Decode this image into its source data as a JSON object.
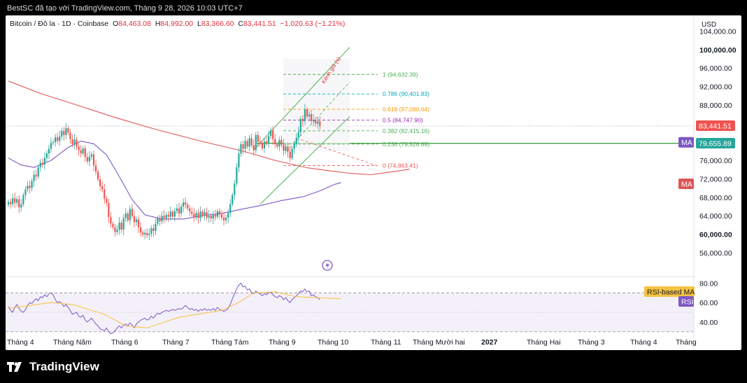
{
  "header": {
    "text": "BestSC đã tạo với TradingView.com, Tháng 9 28, 2026 10:03 UTC+7"
  },
  "symbol": {
    "name": "Bitcoin / Đô la · 1D · Coinbase",
    "o_label": "O",
    "o": "84,463.08",
    "h_label": "H",
    "h": "84,992.00",
    "l_label": "L",
    "l": "83,366.60",
    "c_label": "C",
    "c": "83,441.51",
    "change": "−1,020.63 (−1.21%)"
  },
  "footer": {
    "logo_text": "TradingView"
  },
  "colors": {
    "up": "#26a69a",
    "down": "#ef5350",
    "ma_long": "#e05656",
    "ma_short": "#7e57c2",
    "rsi": "#7e57c2",
    "rsi_ma": "#f5c242",
    "channel": "#4caf50"
  },
  "chart_data": {
    "type": "candlestick",
    "currency_label": "USD",
    "y_axis": {
      "ticks": [
        104000,
        100000,
        96000,
        92000,
        88000,
        84000,
        80000,
        76000,
        72000,
        68000,
        64000,
        60000,
        56000
      ],
      "tick_labels": [
        "104,000.00",
        "100,000.00",
        "96,000.00",
        "92,000.00",
        "88,000.00",
        "84,000.00",
        "80,000.00",
        "76,000.00",
        "72,000.00",
        "68,000.00",
        "64,000.00",
        "60,000.00",
        "56,000.00"
      ],
      "bold_labels": [
        "100,000.00",
        "80,000.00",
        "60,000.00"
      ],
      "range": [
        52800,
        106200
      ]
    },
    "x_axis": {
      "labels": [
        "Tháng 4",
        "Tháng Năm",
        "Tháng 6",
        "Tháng 7",
        "Tháng Tám",
        "Tháng 9",
        "Tháng 10",
        "Tháng 11",
        "Tháng Mười hai",
        "2027",
        "Tháng Hai",
        "Tháng 3",
        "Tháng 4",
        "Tháng"
      ],
      "bold_labels": [
        "2027"
      ]
    },
    "price_badges": [
      {
        "label": "83,441.51",
        "value": 83441.51,
        "color": "#ef5350"
      },
      {
        "label": "79,655.89",
        "value": 79655.89,
        "color": "#26a69a"
      }
    ],
    "ma_badges": [
      {
        "label": "MA",
        "value": 80000,
        "color": "#7e57c2"
      },
      {
        "label": "MA",
        "value": 71000,
        "color": "#e05656"
      }
    ],
    "support_line": 79700,
    "fibonacci": [
      {
        "label": "1 (94,632.39)",
        "value": 94632.39,
        "color": "#4caf50"
      },
      {
        "label": "0.786 (90,401.83)",
        "value": 90401.83,
        "color": "#00acc1"
      },
      {
        "label": "0.618 (87,080.64)",
        "value": 87080.64,
        "color": "#ff9800"
      },
      {
        "label": "0.5 (84,747.90)",
        "value": 84747.9,
        "color": "#9c27b0"
      },
      {
        "label": "0.382 (82,415.16)",
        "value": 82415.16,
        "color": "#4caf50"
      },
      {
        "label": "0.236 (79,528.89)",
        "value": 79528.89,
        "color": "#4caf50"
      },
      {
        "label": "0 (74,863.41)",
        "value": 74863.41,
        "color": "#ef5350"
      }
    ],
    "channel_label": "Kênh giá (s)",
    "close_series": [
      67000,
      66500,
      67800,
      66800,
      67600,
      65800,
      66500,
      68500,
      69700,
      70500,
      70000,
      71500,
      72900,
      72500,
      74500,
      75500,
      75100,
      76500,
      77500,
      78500,
      79800,
      80000,
      81000,
      80200,
      81200,
      82400,
      81500,
      83000,
      82000,
      80600,
      79500,
      80500,
      79000,
      78200,
      77500,
      78600,
      76700,
      75800,
      76800,
      77300,
      74900,
      73600,
      71900,
      70400,
      69700,
      67700,
      66800,
      63700,
      62300,
      61500,
      60500,
      61000,
      62500,
      61000,
      63500,
      64500,
      63000,
      65500,
      63900,
      62600,
      63200,
      61500,
      60400,
      59900,
      60300,
      59800,
      60100,
      61300,
      60700,
      62300,
      63500,
      62800,
      64000,
      63500,
      64200,
      63800,
      64900,
      63800,
      65000,
      65600,
      64500,
      66000,
      66900,
      66400,
      65600,
      64900,
      64400,
      63800,
      64600,
      63500,
      64900,
      64100,
      64800,
      63600,
      64000,
      63400,
      64200,
      63800,
      65000,
      64300,
      63600,
      63000,
      63600,
      64600,
      66500,
      68500,
      71000,
      74500,
      77500,
      79500,
      78500,
      80200,
      79000,
      80800,
      79300,
      78200,
      81500,
      80000,
      79800,
      78600,
      80100,
      79800,
      81300,
      82500,
      80600,
      79500,
      79000,
      80400,
      79400,
      78100,
      79000,
      77900,
      76500,
      78500,
      79500,
      80900,
      82100,
      85000,
      84500,
      87100,
      85500,
      86000,
      84500,
      84800,
      84000,
      84463,
      83441.51
    ],
    "ma_long_series": [
      [
        0,
        93200
      ],
      [
        15,
        90500
      ],
      [
        30,
        88300
      ],
      [
        50,
        85300
      ],
      [
        70,
        82600
      ],
      [
        90,
        80200
      ],
      [
        110,
        78000
      ],
      [
        125,
        76000
      ],
      [
        140,
        74400
      ],
      [
        153,
        73600
      ],
      [
        160,
        73200
      ],
      [
        170,
        72900
      ],
      [
        181,
        73600
      ],
      [
        188,
        74100
      ]
    ],
    "ma_short_series": [
      [
        0,
        76500
      ],
      [
        6,
        75000
      ],
      [
        12,
        74500
      ],
      [
        20,
        76000
      ],
      [
        28,
        78800
      ],
      [
        34,
        80200
      ],
      [
        40,
        79600
      ],
      [
        46,
        77200
      ],
      [
        52,
        72500
      ],
      [
        58,
        67500
      ],
      [
        64,
        64200
      ],
      [
        72,
        63300
      ],
      [
        82,
        63300
      ],
      [
        92,
        64100
      ],
      [
        100,
        64500
      ],
      [
        108,
        65300
      ],
      [
        118,
        66200
      ],
      [
        128,
        67300
      ],
      [
        138,
        68100
      ],
      [
        146,
        69400
      ],
      [
        153,
        70800
      ],
      [
        156,
        71200
      ]
    ],
    "rsi": {
      "label": "RSI",
      "ma_label": "RSI-based MA",
      "tick_labels": [
        "80.00",
        "60.00",
        "40.00"
      ],
      "ticks": [
        80,
        60,
        40
      ],
      "bands": [
        70,
        30
      ],
      "range": [
        27,
        86
      ],
      "values": [
        56,
        52,
        50,
        55,
        58,
        54,
        51,
        50,
        53,
        57,
        60,
        59,
        62,
        64,
        62,
        66,
        65,
        68,
        66,
        69,
        70,
        68,
        63,
        60,
        61,
        59,
        56,
        58,
        55,
        52,
        48,
        49,
        50,
        46,
        45,
        47,
        42,
        40,
        42,
        44,
        41,
        38,
        36,
        33,
        32,
        31,
        34,
        30,
        28,
        29,
        31,
        34,
        36,
        34,
        37,
        38,
        36,
        39,
        37,
        34,
        38,
        40,
        42,
        43,
        44,
        42,
        43,
        46,
        44,
        47,
        49,
        48,
        50,
        51,
        52,
        51,
        52,
        53,
        52,
        53,
        54,
        53,
        55,
        57,
        55,
        53,
        54,
        52,
        53,
        51,
        53,
        52,
        54,
        52,
        53,
        52,
        54,
        52,
        55,
        53,
        52,
        51,
        52,
        54,
        58,
        64,
        69,
        74,
        78,
        80,
        76,
        77,
        73,
        74,
        70,
        69,
        72,
        70,
        69,
        67,
        69,
        68,
        70,
        71,
        68,
        66,
        65,
        67,
        66,
        63,
        65,
        62,
        60,
        63,
        65,
        67,
        69,
        72,
        71,
        74,
        71,
        72,
        67,
        68,
        66,
        65,
        63
      ],
      "ma_values": [
        [
          0,
          54
        ],
        [
          20,
          60
        ],
        [
          30,
          58
        ],
        [
          45,
          48
        ],
        [
          55,
          36
        ],
        [
          65,
          34
        ],
        [
          80,
          45
        ],
        [
          100,
          52
        ],
        [
          108,
          60
        ],
        [
          115,
          70
        ],
        [
          125,
          71
        ],
        [
          135,
          66
        ],
        [
          145,
          65
        ],
        [
          156,
          64
        ]
      ]
    }
  }
}
